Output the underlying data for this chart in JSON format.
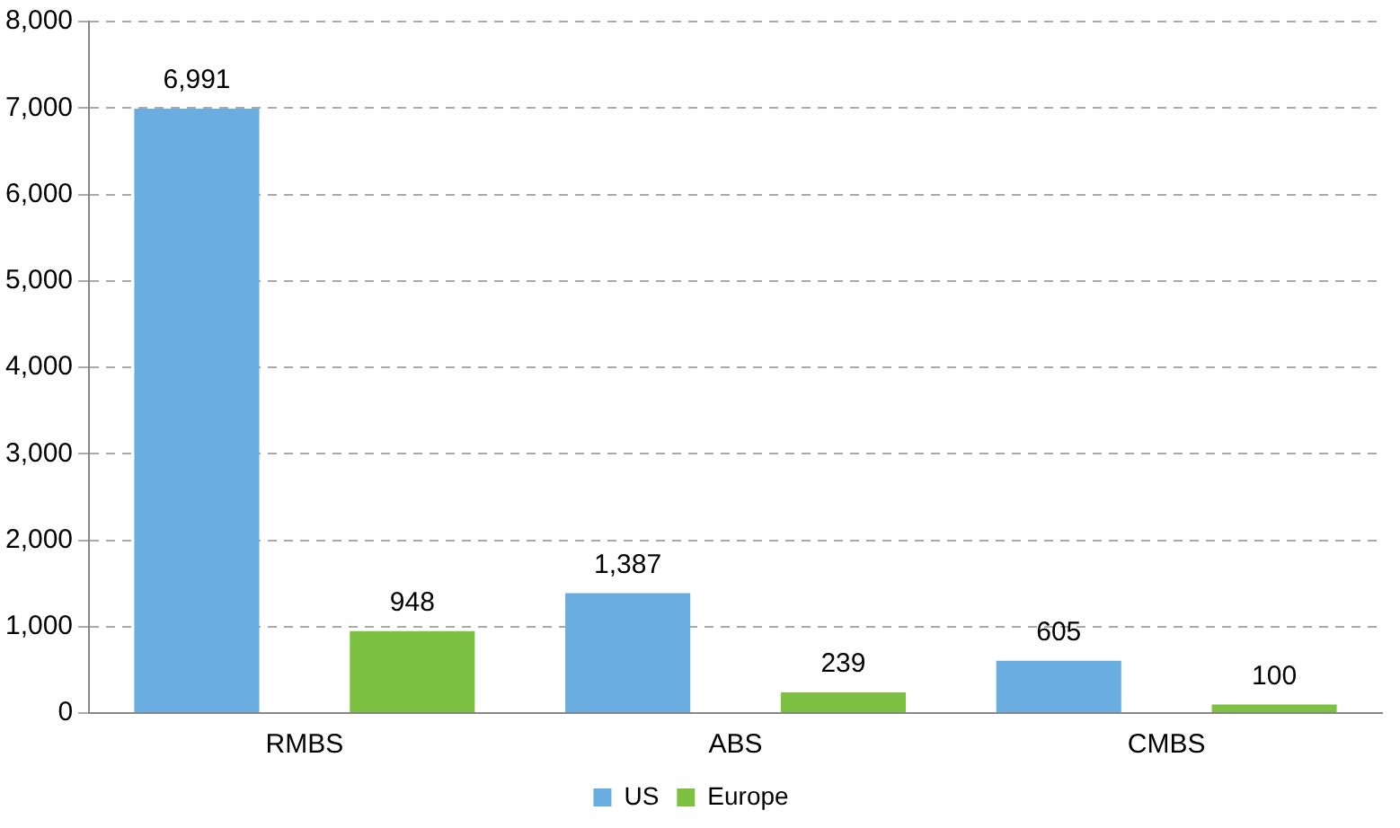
{
  "chart_data": {
    "type": "bar",
    "categories": [
      "RMBS",
      "ABS",
      "CMBS"
    ],
    "series": [
      {
        "name": "US",
        "color": "#6aade0",
        "values": [
          6991,
          1387,
          605
        ],
        "value_labels": [
          "6,991",
          "1,387",
          "605"
        ]
      },
      {
        "name": "Europe",
        "color": "#7dc142",
        "values": [
          948,
          239,
          100
        ],
        "value_labels": [
          "948",
          "239",
          "100"
        ]
      }
    ],
    "ylim": [
      0,
      8000
    ],
    "yticks": [
      0,
      {
        "value": 1000,
        "label": "1,000"
      },
      {
        "value": 2000,
        "label": "2,000"
      },
      {
        "value": 3000,
        "label": "3,000"
      },
      {
        "value": 4000,
        "label": "4,000"
      },
      {
        "value": 5000,
        "label": "5,000"
      },
      {
        "value": 6000,
        "label": "6,000"
      },
      {
        "value": 7000,
        "label": "7,000"
      },
      {
        "value": 8000,
        "label": "8,000"
      }
    ],
    "grid": "y",
    "legend": "bottom"
  }
}
